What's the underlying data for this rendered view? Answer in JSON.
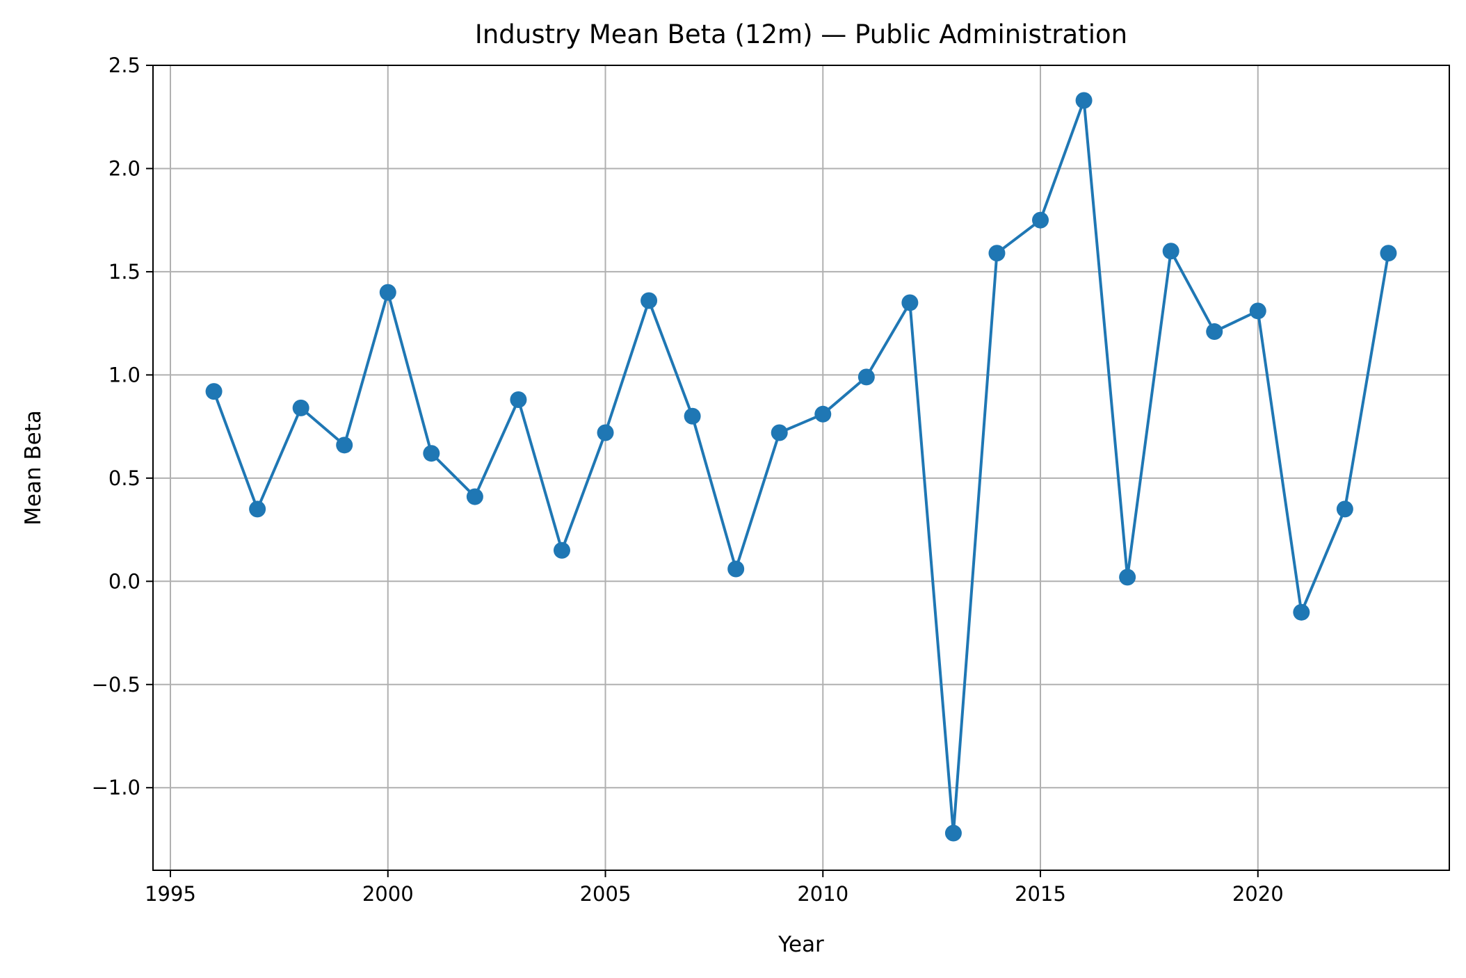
{
  "chart_data": {
    "type": "line",
    "title": "Industry Mean Beta (12m) — Public Administration",
    "xlabel": "Year",
    "ylabel": "Mean Beta",
    "xlim": [
      1994.6,
      2024.4
    ],
    "ylim": [
      -1.4,
      2.5
    ],
    "x_ticks": [
      1995,
      2000,
      2005,
      2010,
      2015,
      2020
    ],
    "y_ticks": [
      -1.0,
      -0.5,
      0.0,
      0.5,
      1.0,
      1.5,
      2.0,
      2.5
    ],
    "x_tick_labels": [
      "1995",
      "2000",
      "2005",
      "2010",
      "2015",
      "2020"
    ],
    "y_tick_labels": [
      "−1.0",
      "−0.5",
      "0.0",
      "0.5",
      "1.0",
      "1.5",
      "2.0",
      "2.5"
    ],
    "grid": true,
    "color": "#1f77b4",
    "series": [
      {
        "x": [
          1996,
          1997,
          1998,
          1999,
          2000,
          2001,
          2002,
          2003,
          2004,
          2005,
          2006,
          2007,
          2008,
          2009,
          2010,
          2011,
          2012,
          2013,
          2014,
          2015,
          2016,
          2017,
          2018,
          2019,
          2020,
          2021,
          2022,
          2023
        ],
        "values": [
          0.92,
          0.35,
          0.84,
          0.66,
          1.4,
          0.62,
          0.41,
          0.88,
          0.15,
          0.72,
          1.36,
          0.8,
          0.06,
          0.72,
          0.81,
          0.99,
          1.35,
          -1.22,
          1.59,
          1.75,
          2.33,
          0.02,
          1.6,
          1.21,
          1.31,
          -0.15,
          0.35,
          1.59
        ]
      }
    ]
  }
}
